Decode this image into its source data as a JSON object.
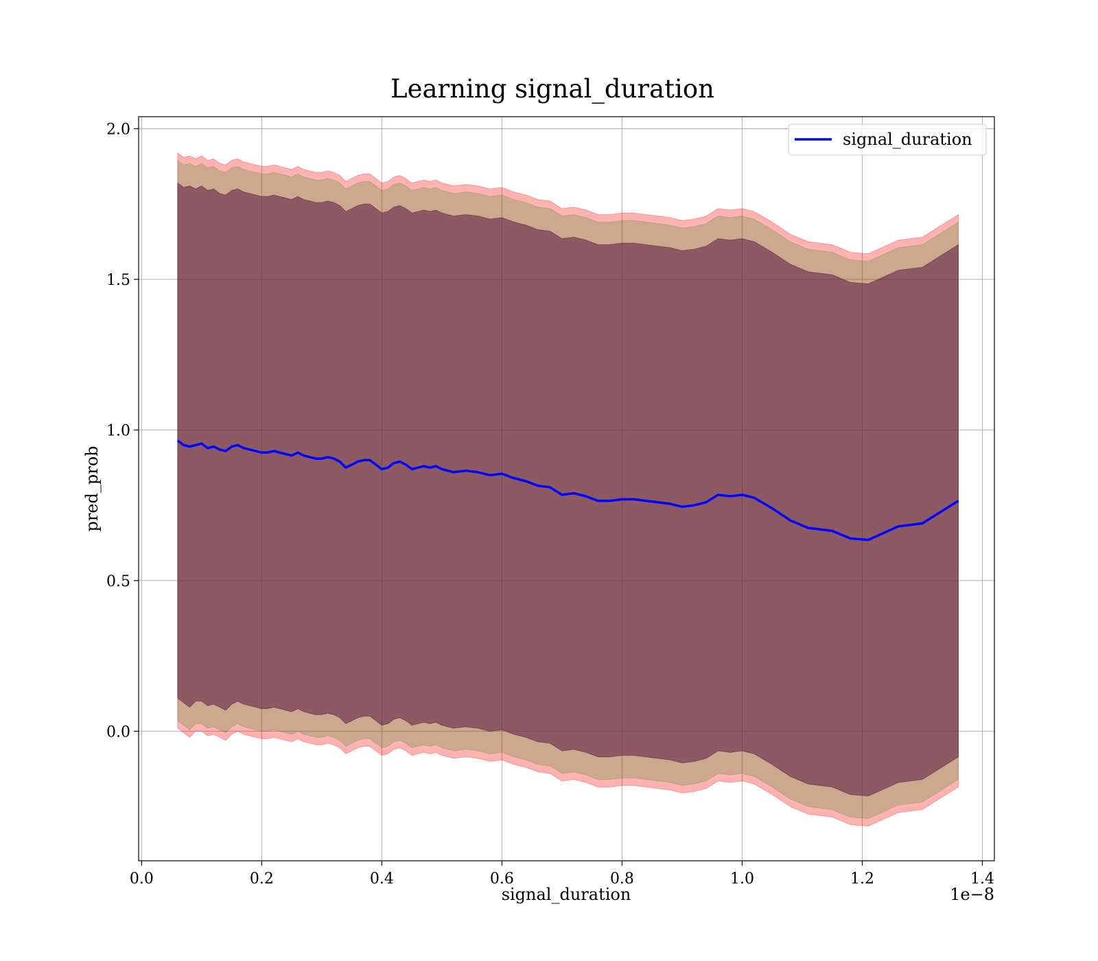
{
  "chart_data": {
    "type": "line",
    "title": "Learning signal_duration",
    "xlabel": "signal_duration",
    "ylabel": "pred_prob",
    "x_offset_label": "1e−8",
    "xlim": [
      -0.005,
      1.42
    ],
    "ylim": [
      -0.43,
      2.04
    ],
    "xticks": [
      0.0,
      0.2,
      0.4,
      0.6,
      0.8,
      1.0,
      1.2,
      1.4
    ],
    "xtick_labels": [
      "0.0",
      "0.2",
      "0.4",
      "0.6",
      "0.8",
      "1.0",
      "1.2",
      "1.4"
    ],
    "yticks": [
      0.0,
      0.5,
      1.0,
      1.5,
      2.0
    ],
    "ytick_labels": [
      "0.0",
      "0.5",
      "1.0",
      "1.5",
      "2.0"
    ],
    "grid": true,
    "legend_position": "top-right",
    "series": [
      {
        "name": "signal_duration",
        "color": "#0000ff",
        "x": [
          0.06,
          0.07,
          0.08,
          0.09,
          0.1,
          0.11,
          0.12,
          0.13,
          0.14,
          0.15,
          0.16,
          0.17,
          0.18,
          0.19,
          0.2,
          0.21,
          0.22,
          0.23,
          0.24,
          0.25,
          0.26,
          0.27,
          0.28,
          0.29,
          0.3,
          0.31,
          0.32,
          0.33,
          0.34,
          0.35,
          0.36,
          0.37,
          0.38,
          0.39,
          0.4,
          0.41,
          0.42,
          0.43,
          0.44,
          0.45,
          0.46,
          0.47,
          0.48,
          0.49,
          0.5,
          0.52,
          0.54,
          0.56,
          0.58,
          0.6,
          0.62,
          0.64,
          0.66,
          0.68,
          0.7,
          0.72,
          0.74,
          0.76,
          0.78,
          0.8,
          0.82,
          0.84,
          0.86,
          0.88,
          0.9,
          0.92,
          0.94,
          0.96,
          0.98,
          1.0,
          1.02,
          1.05,
          1.08,
          1.11,
          1.15,
          1.18,
          1.21,
          1.26,
          1.3,
          1.36
        ],
        "y": [
          0.965,
          0.95,
          0.945,
          0.95,
          0.955,
          0.94,
          0.945,
          0.935,
          0.93,
          0.945,
          0.95,
          0.94,
          0.935,
          0.93,
          0.925,
          0.925,
          0.93,
          0.925,
          0.92,
          0.915,
          0.925,
          0.915,
          0.91,
          0.905,
          0.905,
          0.91,
          0.905,
          0.895,
          0.875,
          0.885,
          0.895,
          0.9,
          0.9,
          0.885,
          0.87,
          0.875,
          0.89,
          0.895,
          0.885,
          0.87,
          0.875,
          0.88,
          0.875,
          0.88,
          0.87,
          0.86,
          0.865,
          0.86,
          0.85,
          0.855,
          0.84,
          0.83,
          0.815,
          0.81,
          0.785,
          0.79,
          0.78,
          0.765,
          0.765,
          0.77,
          0.77,
          0.765,
          0.76,
          0.755,
          0.745,
          0.75,
          0.76,
          0.785,
          0.78,
          0.785,
          0.775,
          0.74,
          0.7,
          0.675,
          0.665,
          0.64,
          0.635,
          0.68,
          0.69,
          0.765
        ]
      }
    ],
    "bands": [
      {
        "color": "#ff0000",
        "opacity": 0.3,
        "upper": [
          1.92,
          1.905,
          1.91,
          1.9,
          1.91,
          1.895,
          1.9,
          1.885,
          1.88,
          1.895,
          1.9,
          1.89,
          1.885,
          1.88,
          1.875,
          1.875,
          1.88,
          1.875,
          1.87,
          1.865,
          1.875,
          1.865,
          1.86,
          1.855,
          1.855,
          1.86,
          1.855,
          1.845,
          1.825,
          1.835,
          1.845,
          1.85,
          1.85,
          1.835,
          1.82,
          1.825,
          1.84,
          1.845,
          1.835,
          1.82,
          1.825,
          1.83,
          1.825,
          1.83,
          1.82,
          1.81,
          1.815,
          1.81,
          1.8,
          1.805,
          1.79,
          1.78,
          1.765,
          1.76,
          1.735,
          1.74,
          1.73,
          1.715,
          1.715,
          1.72,
          1.72,
          1.715,
          1.71,
          1.705,
          1.695,
          1.7,
          1.71,
          1.735,
          1.73,
          1.735,
          1.725,
          1.69,
          1.65,
          1.625,
          1.615,
          1.59,
          1.585,
          1.63,
          1.64,
          1.715
        ],
        "lower": [
          0.01,
          -0.005,
          -0.02,
          0.0,
          0.0,
          -0.015,
          -0.01,
          -0.02,
          -0.03,
          -0.01,
          0.0,
          -0.01,
          -0.015,
          -0.02,
          -0.025,
          -0.025,
          -0.02,
          -0.025,
          -0.03,
          -0.035,
          -0.025,
          -0.035,
          -0.04,
          -0.045,
          -0.045,
          -0.04,
          -0.045,
          -0.055,
          -0.075,
          -0.065,
          -0.055,
          -0.05,
          -0.05,
          -0.065,
          -0.08,
          -0.075,
          -0.06,
          -0.055,
          -0.065,
          -0.08,
          -0.075,
          -0.07,
          -0.075,
          -0.07,
          -0.08,
          -0.09,
          -0.085,
          -0.09,
          -0.1,
          -0.095,
          -0.11,
          -0.12,
          -0.135,
          -0.14,
          -0.165,
          -0.16,
          -0.17,
          -0.185,
          -0.185,
          -0.18,
          -0.18,
          -0.185,
          -0.19,
          -0.195,
          -0.205,
          -0.2,
          -0.19,
          -0.165,
          -0.17,
          -0.165,
          -0.175,
          -0.21,
          -0.25,
          -0.275,
          -0.285,
          -0.31,
          -0.315,
          -0.27,
          -0.26,
          -0.185
        ]
      },
      {
        "color": "#008000",
        "opacity": 0.2,
        "upper": [
          1.895,
          1.88,
          1.885,
          1.875,
          1.885,
          1.87,
          1.875,
          1.86,
          1.855,
          1.87,
          1.875,
          1.865,
          1.86,
          1.855,
          1.85,
          1.85,
          1.855,
          1.85,
          1.845,
          1.84,
          1.85,
          1.84,
          1.835,
          1.83,
          1.83,
          1.835,
          1.83,
          1.82,
          1.8,
          1.81,
          1.82,
          1.825,
          1.825,
          1.81,
          1.795,
          1.8,
          1.815,
          1.82,
          1.81,
          1.795,
          1.8,
          1.805,
          1.8,
          1.805,
          1.795,
          1.785,
          1.79,
          1.785,
          1.775,
          1.78,
          1.765,
          1.755,
          1.74,
          1.735,
          1.71,
          1.715,
          1.705,
          1.69,
          1.69,
          1.695,
          1.695,
          1.69,
          1.685,
          1.68,
          1.67,
          1.675,
          1.685,
          1.71,
          1.705,
          1.71,
          1.7,
          1.665,
          1.625,
          1.6,
          1.59,
          1.565,
          1.56,
          1.605,
          1.615,
          1.69
        ],
        "lower": [
          0.035,
          0.02,
          0.005,
          0.025,
          0.025,
          0.01,
          0.015,
          0.005,
          -0.005,
          0.015,
          0.025,
          0.015,
          0.01,
          0.005,
          0.0,
          0.0,
          0.005,
          0.0,
          -0.005,
          -0.01,
          0.0,
          -0.01,
          -0.015,
          -0.02,
          -0.02,
          -0.015,
          -0.02,
          -0.03,
          -0.05,
          -0.04,
          -0.03,
          -0.025,
          -0.025,
          -0.04,
          -0.055,
          -0.05,
          -0.035,
          -0.03,
          -0.04,
          -0.055,
          -0.05,
          -0.045,
          -0.05,
          -0.045,
          -0.055,
          -0.065,
          -0.06,
          -0.065,
          -0.075,
          -0.07,
          -0.085,
          -0.095,
          -0.11,
          -0.115,
          -0.14,
          -0.135,
          -0.145,
          -0.16,
          -0.16,
          -0.155,
          -0.155,
          -0.16,
          -0.165,
          -0.17,
          -0.18,
          -0.175,
          -0.165,
          -0.14,
          -0.145,
          -0.14,
          -0.15,
          -0.185,
          -0.225,
          -0.25,
          -0.26,
          -0.285,
          -0.29,
          -0.245,
          -0.235,
          -0.16
        ]
      },
      {
        "color": "#5a1a40",
        "opacity": 0.55,
        "upper": [
          1.82,
          1.805,
          1.81,
          1.8,
          1.81,
          1.795,
          1.8,
          1.785,
          1.78,
          1.795,
          1.8,
          1.79,
          1.785,
          1.78,
          1.775,
          1.775,
          1.78,
          1.775,
          1.77,
          1.765,
          1.775,
          1.765,
          1.76,
          1.755,
          1.755,
          1.76,
          1.755,
          1.745,
          1.725,
          1.735,
          1.745,
          1.75,
          1.75,
          1.735,
          1.72,
          1.725,
          1.74,
          1.745,
          1.735,
          1.72,
          1.725,
          1.73,
          1.725,
          1.73,
          1.72,
          1.71,
          1.715,
          1.71,
          1.7,
          1.705,
          1.69,
          1.68,
          1.665,
          1.66,
          1.635,
          1.64,
          1.63,
          1.615,
          1.615,
          1.62,
          1.62,
          1.615,
          1.61,
          1.605,
          1.595,
          1.6,
          1.61,
          1.635,
          1.63,
          1.635,
          1.625,
          1.59,
          1.55,
          1.525,
          1.515,
          1.49,
          1.485,
          1.53,
          1.54,
          1.615
        ],
        "lower": [
          0.11,
          0.095,
          0.08,
          0.1,
          0.1,
          0.085,
          0.09,
          0.08,
          0.07,
          0.09,
          0.1,
          0.09,
          0.085,
          0.08,
          0.075,
          0.075,
          0.08,
          0.075,
          0.07,
          0.065,
          0.075,
          0.065,
          0.06,
          0.055,
          0.055,
          0.06,
          0.055,
          0.045,
          0.025,
          0.035,
          0.045,
          0.05,
          0.05,
          0.035,
          0.02,
          0.025,
          0.04,
          0.045,
          0.035,
          0.02,
          0.025,
          0.03,
          0.025,
          0.03,
          0.02,
          0.01,
          0.015,
          0.01,
          0.0,
          0.005,
          -0.01,
          -0.02,
          -0.035,
          -0.04,
          -0.065,
          -0.06,
          -0.07,
          -0.085,
          -0.085,
          -0.08,
          -0.08,
          -0.085,
          -0.09,
          -0.095,
          -0.105,
          -0.1,
          -0.09,
          -0.065,
          -0.07,
          -0.065,
          -0.075,
          -0.11,
          -0.15,
          -0.175,
          -0.185,
          -0.21,
          -0.215,
          -0.17,
          -0.16,
          -0.085
        ]
      }
    ]
  }
}
